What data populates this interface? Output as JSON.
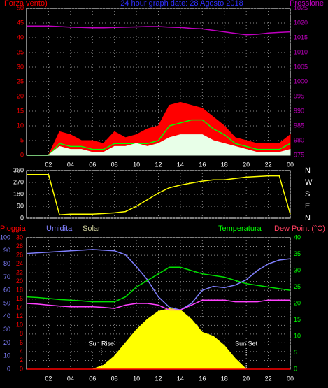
{
  "title": "24 hour graph date: 28 Agosto 2018",
  "chart_data": [
    {
      "type": "line",
      "ylabel": "Forza vento)",
      "y2label": "Pressione",
      "xlim": [
        0,
        24
      ],
      "xticks": [
        {
          "value": 2,
          "label": "02"
        },
        {
          "value": 4,
          "label": "04"
        },
        {
          "value": 6,
          "label": "06"
        },
        {
          "value": 8,
          "label": "08"
        },
        10,
        12,
        14,
        16,
        18,
        20,
        22,
        {
          "value": 24,
          "label": "00"
        }
      ],
      "ylim": [
        0,
        50
      ],
      "yticks": [
        0,
        5,
        10,
        15,
        20,
        25,
        30,
        35,
        40,
        45,
        50
      ],
      "y2lim": [
        975,
        1025
      ],
      "y2ticks": [
        975,
        980,
        985,
        990,
        995,
        1000,
        1005,
        1010,
        1015,
        1020,
        1025
      ],
      "grid": true,
      "x": [
        0,
        1,
        2,
        3,
        4,
        5,
        6,
        7,
        8,
        9,
        10,
        11,
        12,
        13,
        14,
        15,
        16,
        17,
        18,
        19,
        20,
        21,
        22,
        23,
        24
      ],
      "series": [
        {
          "color": "#ff0000",
          "fill": true,
          "values": [
            0,
            0,
            0,
            8,
            7,
            5,
            5,
            4,
            8,
            6,
            7,
            9,
            10,
            17,
            18,
            17,
            16,
            13,
            10,
            6,
            5,
            4,
            4,
            4,
            7
          ]
        },
        {
          "color": "#00ff00",
          "values": [
            0,
            0,
            0,
            4,
            3,
            3,
            2,
            2,
            4,
            4,
            4,
            4,
            5,
            10,
            11,
            12,
            12,
            9,
            7,
            4,
            3,
            2,
            2,
            2,
            4
          ]
        },
        {
          "color": "#e8ffe8",
          "fill": true,
          "values": [
            0,
            0,
            0,
            3,
            2,
            2,
            1,
            1,
            3,
            3,
            4,
            3,
            4,
            6,
            7,
            7,
            7,
            5,
            4,
            3,
            2,
            1,
            1,
            1,
            2
          ]
        },
        {
          "color": "#c000c0",
          "axis": "y2",
          "values": [
            1019,
            1019,
            1019,
            1018.8,
            1018.6,
            1018.5,
            1018.4,
            1018.4,
            1018.5,
            1018.6,
            1018.7,
            1018.8,
            1018.8,
            1018.6,
            1018.5,
            1018.2,
            1018,
            1017.5,
            1017,
            1016.5,
            1016,
            1016.2,
            1016.6,
            1016.8,
            1017
          ]
        }
      ]
    },
    {
      "type": "line",
      "xlim": [
        0,
        24
      ],
      "xticks": [
        2,
        4,
        6,
        8,
        10,
        12,
        14,
        16,
        18,
        20,
        22,
        24
      ],
      "ylim": [
        0,
        360
      ],
      "yticks": [
        0,
        90,
        180,
        270,
        360
      ],
      "y2lim": [
        0,
        360
      ],
      "y2ticks": [
        {
          "value": 0,
          "label": "N"
        },
        {
          "value": 90,
          "label": "E"
        },
        {
          "value": 180,
          "label": "S"
        },
        {
          "value": 270,
          "label": "W"
        },
        {
          "value": 360,
          "label": "N"
        }
      ],
      "grid": true,
      "x": [
        0,
        1,
        2,
        3,
        4,
        5,
        6,
        7,
        8,
        9,
        10,
        11,
        12,
        13,
        14,
        15,
        16,
        17,
        18,
        19,
        20,
        21,
        22,
        23,
        24
      ],
      "series": [
        {
          "color": "#ffff00",
          "values": [
            330,
            330,
            330,
            25,
            30,
            30,
            30,
            35,
            40,
            50,
            90,
            140,
            190,
            230,
            250,
            265,
            280,
            290,
            290,
            300,
            310,
            315,
            320,
            320,
            30
          ]
        }
      ]
    },
    {
      "type": "line",
      "headers": [
        {
          "text": "Pioggia",
          "color": "#ff0000"
        },
        {
          "text": "Umidita",
          "color": "#8080ff"
        },
        {
          "text": "Solar",
          "color": "#c8c896"
        },
        {
          "text": "Temperatura",
          "color": "#00ff00"
        },
        {
          "text": "Dew Point (°C)",
          "color": "#ff4060"
        }
      ],
      "xlim": [
        0,
        24
      ],
      "xticks": [
        {
          "value": 2,
          "label": "02"
        },
        {
          "value": 4,
          "label": "04"
        },
        {
          "value": 6,
          "label": "06"
        },
        {
          "value": 8,
          "label": "08"
        },
        10,
        12,
        14,
        16,
        18,
        20,
        22,
        {
          "value": 24,
          "label": "00"
        }
      ],
      "ylim": [
        0,
        30
      ],
      "yticks": [
        0,
        2,
        4,
        6,
        8,
        10,
        12,
        14,
        16,
        18,
        20,
        22,
        24,
        26,
        28,
        30
      ],
      "y3lim": [
        0,
        100
      ],
      "y3ticks": [
        0,
        10,
        20,
        30,
        40,
        50,
        60,
        70,
        80,
        90,
        100
      ],
      "y2lim": [
        0,
        40
      ],
      "y2ticks": [
        0,
        5,
        10,
        15,
        20,
        25,
        30,
        35,
        40
      ],
      "grid": true,
      "annotations": [
        {
          "text": "Sun Rise",
          "x": 6.8
        },
        {
          "text": "Sun Set",
          "x": 20
        }
      ],
      "x": [
        0,
        1,
        2,
        3,
        4,
        5,
        6,
        7,
        8,
        9,
        10,
        11,
        12,
        13,
        14,
        15,
        16,
        17,
        18,
        19,
        20,
        21,
        22,
        23,
        24
      ],
      "series": [
        {
          "color": "#ffff00",
          "axis": "y3",
          "fill": true,
          "values": [
            0,
            0,
            0,
            0,
            0,
            0,
            0,
            3,
            10,
            20,
            30,
            38,
            44,
            46,
            45,
            38,
            28,
            25,
            18,
            8,
            0,
            0,
            0,
            0,
            0
          ]
        },
        {
          "color": "#8080ff",
          "axis": "y3",
          "values": [
            88,
            88.5,
            89,
            89.5,
            90,
            90.5,
            91,
            90.5,
            90,
            87,
            78,
            68,
            55,
            47,
            45,
            50,
            60,
            63,
            62,
            64,
            68,
            75,
            80,
            83,
            84
          ]
        },
        {
          "color": "#00e000",
          "axis": "y2",
          "values": [
            22,
            21.8,
            21.5,
            21.2,
            21,
            20.8,
            20.5,
            20.5,
            20.5,
            22,
            25,
            27,
            29,
            31,
            31,
            30,
            29,
            28.5,
            28,
            27,
            26,
            25.5,
            25,
            24.5,
            24
          ]
        },
        {
          "color": "#ff40ff",
          "axis": "y2",
          "values": [
            20,
            19.8,
            19.5,
            19.2,
            19,
            19,
            19,
            18.8,
            18.5,
            19.5,
            20,
            20,
            19.5,
            18,
            18,
            19.5,
            21,
            21,
            21,
            20.5,
            20.5,
            20.5,
            21,
            21,
            21
          ]
        },
        {
          "color": "#ff0000",
          "values": [
            0,
            0,
            0,
            0,
            0,
            0,
            0,
            0,
            0,
            0,
            0,
            0,
            0,
            0,
            0,
            0,
            0,
            0,
            0,
            0,
            0,
            0,
            0,
            0,
            0
          ]
        }
      ]
    }
  ]
}
